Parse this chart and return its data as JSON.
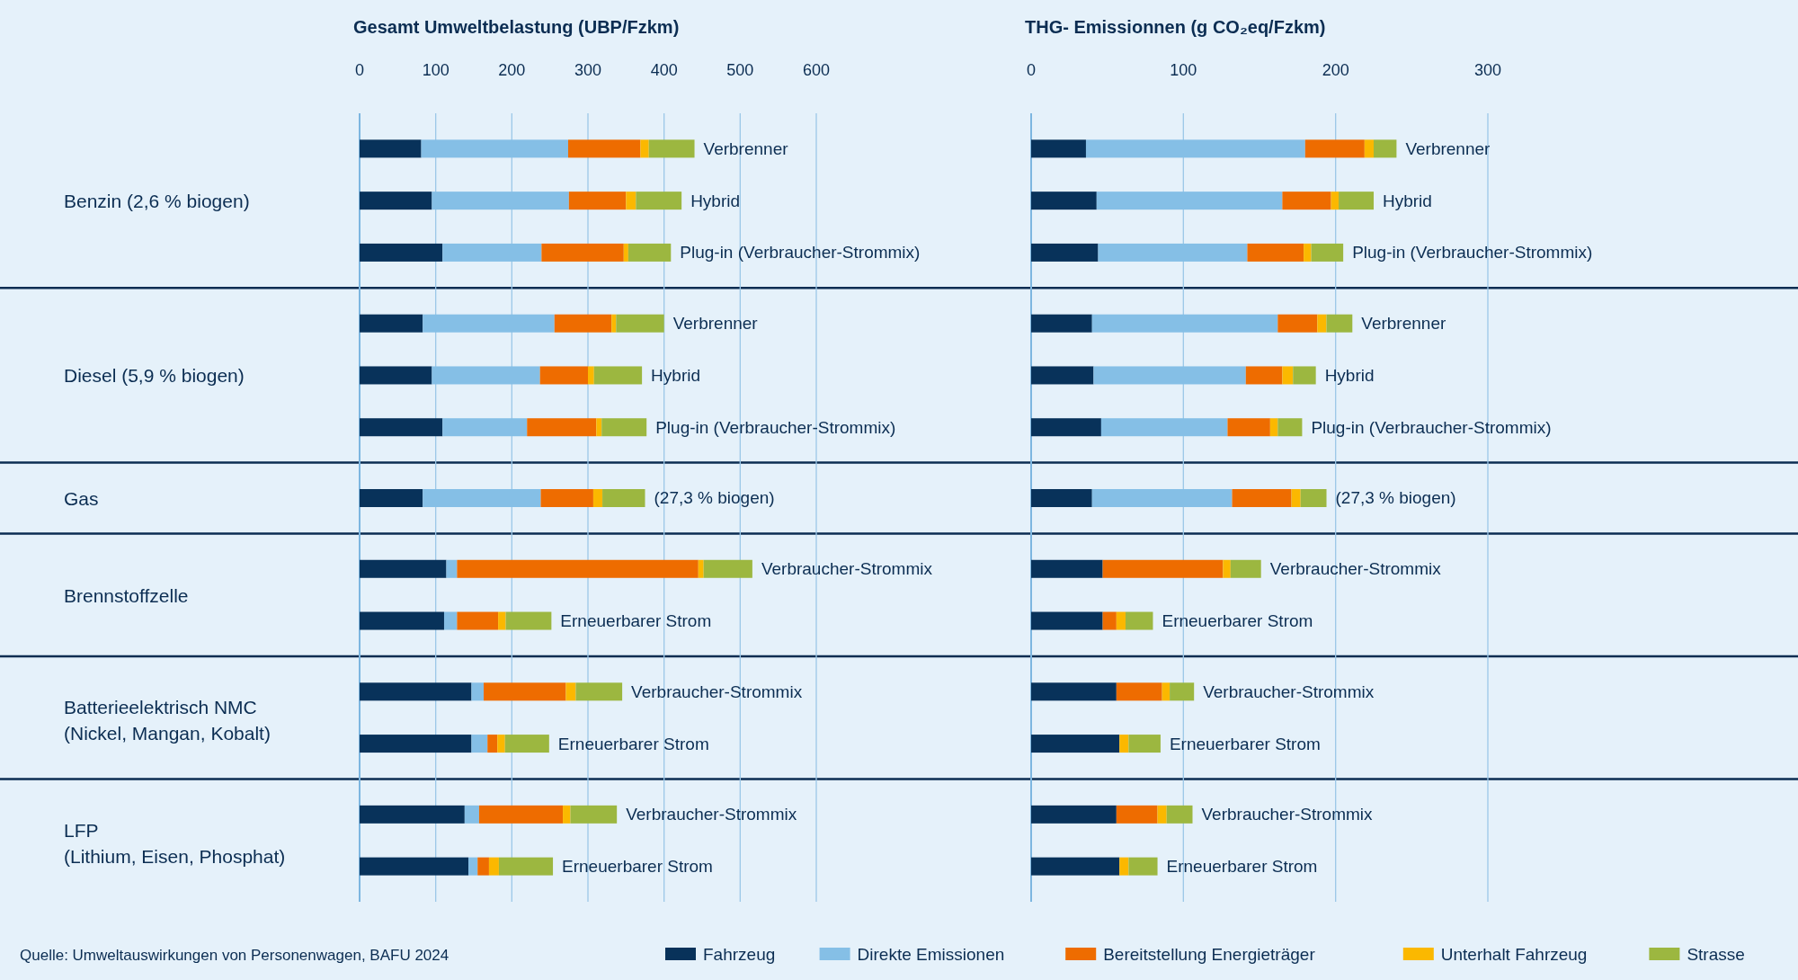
{
  "chart_data": [
    {
      "type": "bar",
      "orientation": "horizontal",
      "stacked": true,
      "title": "Gesamt Umweltbelastung (UBP/Fzkm)",
      "categories": [
        "Verbrenner",
        "Hybrid",
        "Plug-in (Verbraucher-Strommix)",
        "Verbrenner",
        "Hybrid",
        "Plug-in (Verbraucher-Strommix)",
        "(27,3 % biogen)",
        "Verbraucher-Strommix",
        "Erneuerbarer Strom",
        "Verbraucher-Strommix",
        "Erneuerbarer Strom",
        "Verbraucher-Strommix",
        "Erneuerbarer Strom"
      ],
      "series": [
        {
          "name": "Fahrzeug",
          "color": "#08325a",
          "values": [
            81,
            95,
            109,
            83,
            95,
            109,
            83,
            114,
            111,
            147,
            147,
            138,
            143
          ]
        },
        {
          "name": "Direkte Emissionen",
          "color": "#85bfe6",
          "values": [
            193,
            180,
            130,
            173,
            142,
            111,
            155,
            14,
            17,
            16,
            21,
            19,
            12
          ]
        },
        {
          "name": "Bereitstellung Energieträger",
          "color": "#ee6c00",
          "values": [
            95,
            75,
            108,
            75,
            63,
            91,
            69,
            317,
            54,
            108,
            13,
            110,
            15
          ]
        },
        {
          "name": "Unterhalt Fahrzeug",
          "color": "#fbb800",
          "values": [
            11,
            13,
            6,
            6,
            8,
            7,
            12,
            7,
            10,
            13,
            10,
            10,
            13
          ]
        },
        {
          "name": "Strasse",
          "color": "#9cb740",
          "values": [
            60,
            60,
            56,
            63,
            63,
            59,
            56,
            64,
            60,
            61,
            58,
            61,
            71
          ]
        }
      ],
      "xlim": [
        0,
        600
      ],
      "xticks": [
        0,
        100,
        200,
        300,
        400,
        500,
        600
      ],
      "grid": "x",
      "legend": "bottom",
      "annotations": [
        "Benzin (2,6 % biogen)",
        "Diesel (5,9 % biogen)",
        "Gas",
        "Brennstoffzelle",
        "Batterieelektrisch NMC\n(Nickel, Mangan, Kobalt)",
        "LFP\n(Lithium, Eisen, Phosphat)",
        "Quelle: Umweltauswirkungen von Personenwagen, BAFU 2024"
      ]
    },
    {
      "type": "bar",
      "orientation": "horizontal",
      "stacked": true,
      "title": "THG- Emissionnen (g CO₂eq/Fzkm)",
      "categories": [
        "Verbrenner",
        "Hybrid",
        "Plug-in (Verbraucher-Strommix)",
        "Verbrenner",
        "Hybrid",
        "Plug-in (Verbraucher-Strommix)",
        "(27,3 % biogen)",
        "Verbraucher-Strommix",
        "Erneuerbarer Strom",
        "Verbraucher-Strommix",
        "Erneuerbarer Strom",
        "Verbraucher-Strommix",
        "Erneuerbarer Strom"
      ],
      "series": [
        {
          "color": "#08325a",
          "values": [
            36,
            43,
            44,
            40,
            41,
            46,
            40,
            47,
            47,
            56,
            58,
            56,
            58
          ]
        },
        {
          "color": "#85bfe6",
          "values": [
            144,
            122,
            98,
            122,
            100,
            83,
            92,
            0,
            0,
            0,
            0,
            0,
            0
          ]
        },
        {
          "color": "#ee6c00",
          "values": [
            39,
            32,
            37,
            26,
            24,
            28,
            39,
            79,
            9,
            30,
            0,
            27,
            0
          ]
        },
        {
          "color": "#fbb800",
          "values": [
            6,
            5,
            5,
            6,
            7,
            5,
            6,
            5,
            6,
            5,
            6,
            6,
            6
          ]
        },
        {
          "color": "#9cb740",
          "values": [
            15,
            23,
            21,
            17,
            15,
            16,
            17,
            20,
            18,
            16,
            21,
            17,
            19
          ]
        }
      ],
      "xlim": [
        0,
        300
      ],
      "xticks": [
        0,
        100,
        200,
        300
      ],
      "grid": "x"
    }
  ]
}
